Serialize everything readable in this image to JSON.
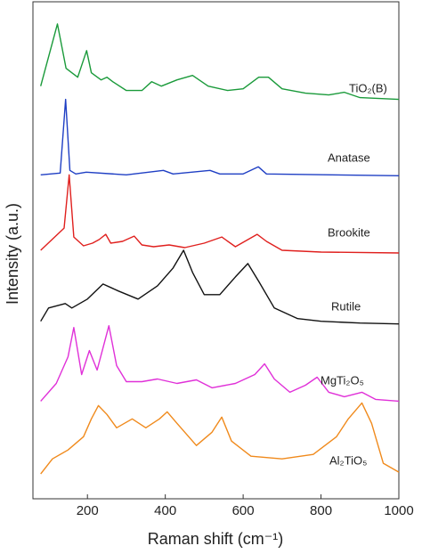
{
  "chart_data": {
    "type": "line",
    "x_label": "Raman shift (cm⁻¹)",
    "y_label": "Intensity (a.u.)",
    "xlim": [
      60,
      1000
    ],
    "xticks": [
      200,
      400,
      600,
      800,
      1000
    ],
    "ylim": [
      0,
      560
    ],
    "series": [
      {
        "name": "TiO₂(B)",
        "color": "#1a9a3a",
        "x": [
          80,
          123,
          145,
          160,
          175,
          198,
          210,
          235,
          250,
          265,
          300,
          340,
          365,
          390,
          430,
          470,
          510,
          560,
          600,
          640,
          665,
          700,
          760,
          820,
          860,
          900,
          1000
        ],
        "values": [
          465,
          535,
          485,
          480,
          475,
          505,
          480,
          472,
          475,
          470,
          460,
          460,
          470,
          465,
          472,
          477,
          465,
          460,
          462,
          475,
          475,
          462,
          457,
          455,
          458,
          452,
          450
        ]
      },
      {
        "name": "Anatase",
        "color": "#1f3fc4",
        "x": [
          80,
          130,
          144,
          155,
          170,
          197,
          300,
          395,
          420,
          515,
          540,
          600,
          639,
          660,
          1000
        ],
        "values": [
          365,
          367,
          450,
          370,
          366,
          368,
          365,
          370,
          366,
          370,
          366,
          366,
          374,
          366,
          364
        ]
      },
      {
        "name": "Brookite",
        "color": "#e0201e",
        "x": [
          80,
          128,
          140,
          153,
          165,
          190,
          213,
          230,
          247,
          260,
          290,
          320,
          340,
          370,
          410,
          450,
          500,
          545,
          580,
          636,
          660,
          700,
          800,
          1000
        ],
        "values": [
          280,
          300,
          305,
          365,
          295,
          285,
          288,
          292,
          298,
          288,
          290,
          296,
          286,
          284,
          286,
          283,
          288,
          295,
          284,
          298,
          290,
          280,
          278,
          277
        ]
      },
      {
        "name": "Rutile",
        "color": "#111111",
        "x": [
          80,
          100,
          143,
          160,
          200,
          240,
          280,
          330,
          380,
          420,
          447,
          470,
          500,
          540,
          580,
          612,
          640,
          680,
          740,
          800,
          900,
          1000
        ],
        "values": [
          200,
          215,
          220,
          215,
          225,
          242,
          234,
          225,
          240,
          260,
          280,
          255,
          230,
          230,
          250,
          265,
          245,
          215,
          203,
          200,
          198,
          197
        ]
      },
      {
        "name": "MgTi₂O₅",
        "color": "#e030d8",
        "x": [
          80,
          120,
          150,
          165,
          185,
          205,
          225,
          255,
          275,
          300,
          340,
          380,
          430,
          480,
          520,
          580,
          630,
          655,
          680,
          720,
          760,
          790,
          820,
          860,
          905,
          940,
          1000
        ],
        "values": [
          110,
          130,
          160,
          193,
          140,
          167,
          145,
          195,
          150,
          132,
          132,
          135,
          130,
          134,
          125,
          130,
          140,
          152,
          135,
          120,
          128,
          137,
          120,
          115,
          120,
          112,
          110
        ]
      },
      {
        "name": "Al₂TiO₅",
        "color": "#f08a1c",
        "x": [
          80,
          110,
          150,
          190,
          210,
          228,
          250,
          275,
          315,
          350,
          385,
          405,
          430,
          480,
          520,
          545,
          570,
          620,
          700,
          780,
          840,
          870,
          905,
          930,
          960,
          1000
        ],
        "values": [
          28,
          45,
          55,
          70,
          90,
          105,
          95,
          80,
          90,
          80,
          90,
          98,
          85,
          60,
          75,
          92,
          65,
          48,
          45,
          50,
          70,
          90,
          108,
          85,
          40,
          30
        ]
      }
    ]
  }
}
